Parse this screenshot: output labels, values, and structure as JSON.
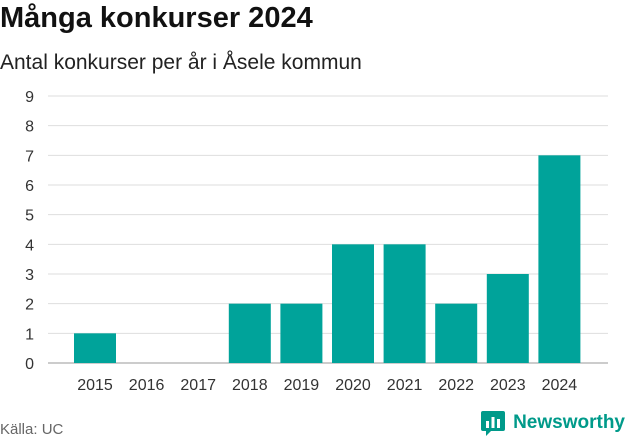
{
  "title": "Många konkurser 2024",
  "subtitle": "Antal konkurser per år i Åsele kommun",
  "source": "Källa: UC",
  "brand": {
    "name": "Newsworthy",
    "icon": "newsworthy-logo-icon",
    "color": "#009a8a"
  },
  "chart_data": {
    "type": "bar",
    "categories": [
      "2015",
      "2016",
      "2017",
      "2018",
      "2019",
      "2020",
      "2021",
      "2022",
      "2023",
      "2024"
    ],
    "values": [
      1,
      0,
      0,
      2,
      2,
      4,
      4,
      2,
      3,
      7
    ],
    "yticks": [
      "0",
      "1",
      "2",
      "3",
      "4",
      "5",
      "6",
      "7",
      "8",
      "9"
    ],
    "ylim": [
      0,
      9
    ],
    "grid": true,
    "bar_color": "#00a39a"
  }
}
